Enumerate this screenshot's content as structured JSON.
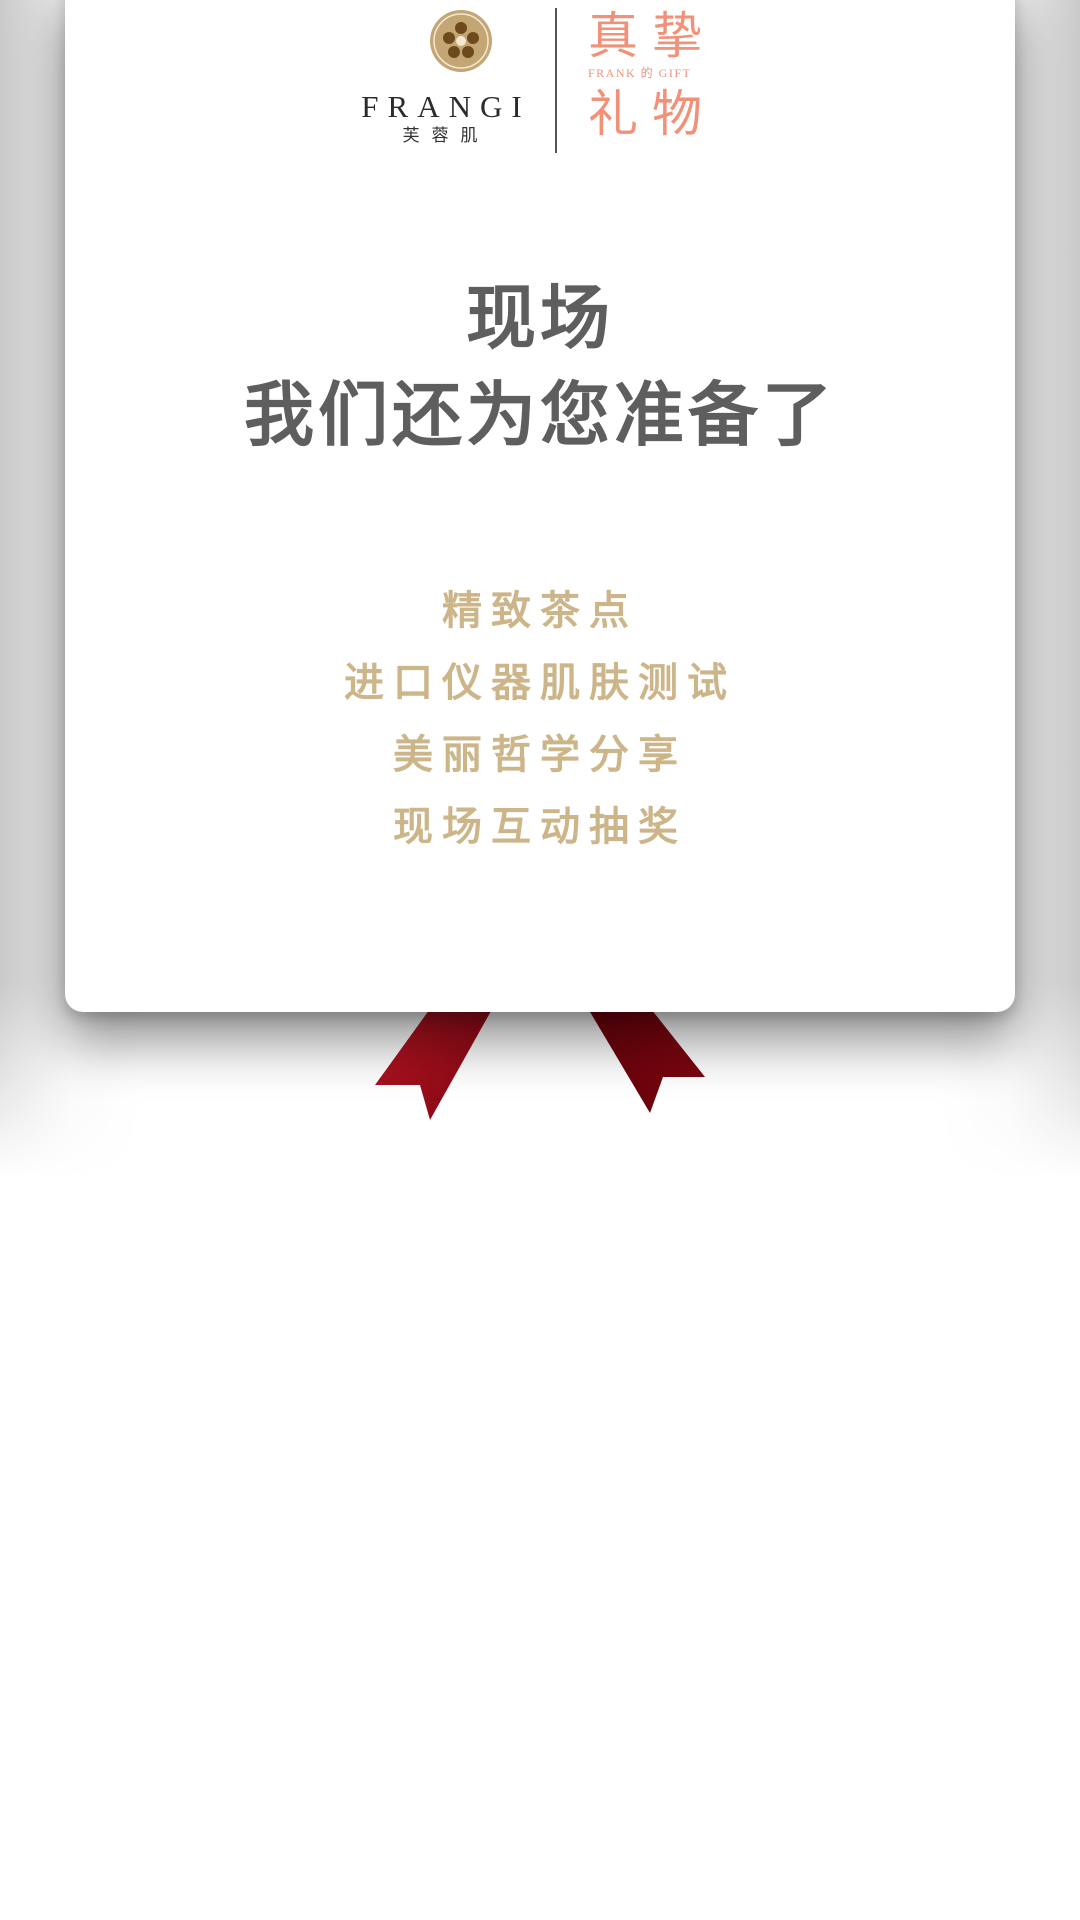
{
  "brand": {
    "name_en": "FRANGI",
    "name_cn": "芙蓉肌",
    "gift_top": "真挚",
    "gift_mid": "FRANK 的 GIFT",
    "gift_bottom": "礼物"
  },
  "headline": {
    "line1": "现场",
    "line2": "我们还为您准备了"
  },
  "items": [
    "精致茶点",
    "进口仪器肌肤测试",
    "美丽哲学分享",
    "现场互动抽奖"
  ],
  "colors": {
    "accent_pink": "#f1917a",
    "gold_text": "#cdb58a",
    "heading_gray": "#5e5e5e",
    "ribbon_red": "#b01020"
  },
  "icons": {
    "logo": "ornamental-flower-emblem-icon",
    "ribbon": "red-ribbon-tails-icon"
  }
}
